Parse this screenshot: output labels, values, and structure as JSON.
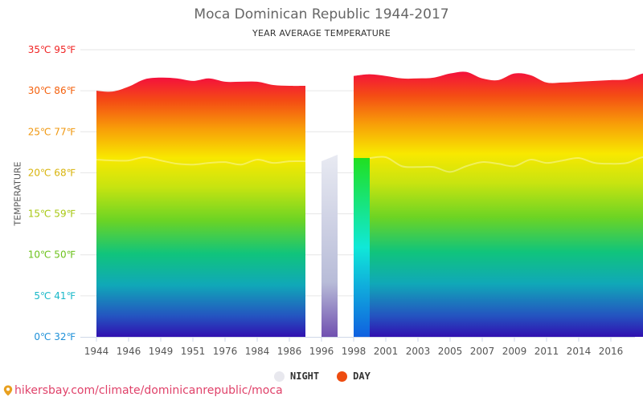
{
  "header": {
    "title": "Moca Dominican Republic 1944-2017",
    "subtitle": "YEAR AVERAGE TEMPERATURE"
  },
  "legend": {
    "night_label": "NIGHT",
    "day_label": "DAY",
    "night_color": "#e8e8ee",
    "day_color": "#ee4c10"
  },
  "source": {
    "text": "hikersbay.com/climate/dominicanrepublic/moca",
    "color": "#e0426a"
  },
  "chart_data": {
    "type": "area",
    "ylabel": "TEMPERATURE",
    "ylim": [
      0,
      35
    ],
    "yticks": [
      {
        "value": 0,
        "label": "0℃ 32℉",
        "color": "#1e90d8"
      },
      {
        "value": 5,
        "label": "5℃ 41℉",
        "color": "#18b8c8"
      },
      {
        "value": 10,
        "label": "10℃ 50℉",
        "color": "#6cc21c"
      },
      {
        "value": 15,
        "label": "15℃ 59℉",
        "color": "#a8c814"
      },
      {
        "value": 20,
        "label": "20℃ 68℉",
        "color": "#d8b40c"
      },
      {
        "value": 25,
        "label": "25℃ 77℉",
        "color": "#f09810"
      },
      {
        "value": 30,
        "label": "30℃ 86℉",
        "color": "#f4600c"
      },
      {
        "value": 35,
        "label": "35℃ 95℉",
        "color": "#f02424"
      }
    ],
    "xticks": [
      "1944",
      "1946",
      "1949",
      "1951",
      "1976",
      "1984",
      "1986",
      "1996",
      "1998",
      "2001",
      "2003",
      "2005",
      "2007",
      "2009",
      "2011",
      "2014",
      "2016"
    ],
    "segments": [
      {
        "day": [
          [
            1944,
            30.0
          ],
          [
            1945,
            29.9
          ],
          [
            1946,
            30.5
          ],
          [
            1947,
            31.4
          ],
          [
            1948,
            31.6
          ],
          [
            1949,
            31.5
          ],
          [
            1950,
            31.2
          ],
          [
            1951,
            31.5
          ],
          [
            1952,
            31.1
          ],
          [
            1976,
            31.1
          ],
          [
            1980,
            31.1
          ],
          [
            1984,
            30.7
          ],
          [
            1985,
            30.6
          ],
          [
            1986,
            30.6
          ]
        ],
        "night": [
          [
            1944,
            21.6
          ],
          [
            1945,
            21.5
          ],
          [
            1946,
            21.5
          ],
          [
            1947,
            21.9
          ],
          [
            1948,
            21.5
          ],
          [
            1949,
            21.1
          ],
          [
            1950,
            21.0
          ],
          [
            1951,
            21.2
          ],
          [
            1952,
            21.3
          ],
          [
            1976,
            21.0
          ],
          [
            1980,
            21.6
          ],
          [
            1984,
            21.2
          ],
          [
            1985,
            21.4
          ],
          [
            1986,
            21.4
          ]
        ]
      },
      {
        "day": [
          [
            1987,
            21.4
          ],
          [
            1988,
            22.2
          ]
        ],
        "night": [
          [
            1987,
            21.4
          ],
          [
            1988,
            22.2
          ]
        ]
      },
      {
        "day": [
          [
            1996,
            31.8
          ],
          [
            1997,
            32.0
          ],
          [
            1998,
            31.8
          ],
          [
            1999,
            31.5
          ],
          [
            2000,
            31.5
          ],
          [
            2001,
            31.6
          ],
          [
            2002,
            32.1
          ],
          [
            2003,
            32.3
          ],
          [
            2004,
            31.5
          ],
          [
            2005,
            31.3
          ],
          [
            2006,
            32.1
          ],
          [
            2007,
            31.9
          ],
          [
            2008,
            31.0
          ],
          [
            2009,
            31.0
          ],
          [
            2010,
            31.1
          ],
          [
            2011,
            31.2
          ],
          [
            2012,
            31.3
          ],
          [
            2013,
            31.4
          ],
          [
            2014,
            32.1
          ],
          [
            2015,
            32.2
          ],
          [
            2016,
            31.9
          ],
          [
            2017,
            31.9
          ]
        ],
        "night": [
          [
            1997,
            21.8
          ],
          [
            1998,
            21.9
          ],
          [
            1999,
            20.8
          ],
          [
            2000,
            20.7
          ],
          [
            2001,
            20.7
          ],
          [
            2002,
            20.1
          ],
          [
            2003,
            20.8
          ],
          [
            2004,
            21.3
          ],
          [
            2005,
            21.1
          ],
          [
            2006,
            20.8
          ],
          [
            2007,
            21.6
          ],
          [
            2008,
            21.2
          ],
          [
            2009,
            21.5
          ],
          [
            2010,
            21.8
          ],
          [
            2011,
            21.2
          ],
          [
            2012,
            21.1
          ],
          [
            2013,
            21.2
          ],
          [
            2014,
            21.9
          ],
          [
            2015,
            21.7
          ],
          [
            2016,
            21.3
          ],
          [
            2017,
            21.7
          ]
        ]
      }
    ]
  }
}
